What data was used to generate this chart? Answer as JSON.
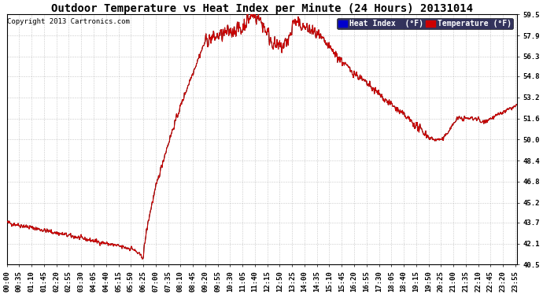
{
  "title": "Outdoor Temperature vs Heat Index per Minute (24 Hours) 20131014",
  "copyright": "Copyright 2013 Cartronics.com",
  "yticks_display": [
    40.5,
    42.1,
    43.7,
    45.2,
    46.8,
    48.4,
    50.0,
    51.6,
    53.2,
    54.8,
    56.3,
    57.9,
    59.5
  ],
  "ymin": 40.5,
  "ymax": 59.5,
  "background_color": "#ffffff",
  "plot_bg_color": "#ffffff",
  "grid_color": "#bbbbbb",
  "line_color_temp": "#cc0000",
  "line_color_heat": "#000000",
  "legend_heat_bg": "#0000cc",
  "legend_temp_bg": "#cc0000",
  "legend_text_color": "#ffffff",
  "title_fontsize": 10,
  "copyright_fontsize": 6.5,
  "tick_fontsize": 6.5,
  "legend_fontsize": 7,
  "xtick_interval": 35
}
